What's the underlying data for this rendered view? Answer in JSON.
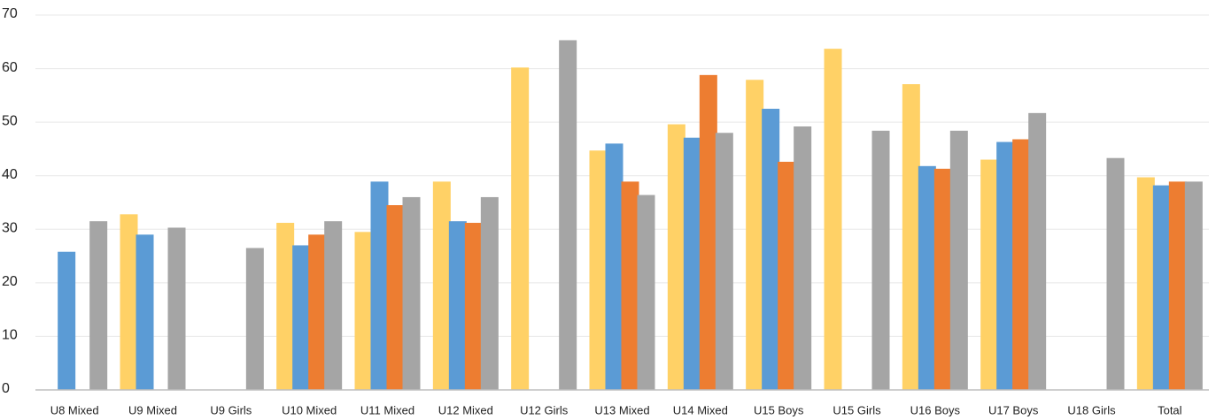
{
  "chart_data": {
    "type": "bar",
    "categories": [
      "U8 Mixed",
      "U9 Mixed",
      "U9 Girls",
      "U10 Mixed",
      "U11 Mixed",
      "U12 Mixed",
      "U12 Girls",
      "U13 Mixed",
      "U14 Mixed",
      "U15 Boys",
      "U15 Girls",
      "U16 Boys",
      "U17 Boys",
      "U18 Girls",
      "Total"
    ],
    "series": [
      {
        "color": "#ffd166",
        "values": [
          null,
          32.8,
          null,
          31.2,
          29.5,
          38.9,
          60.2,
          44.7,
          49.6,
          57.9,
          63.7,
          57.1,
          43.0,
          null,
          39.7
        ]
      },
      {
        "color": "#5b9bd5",
        "values": [
          25.8,
          29.0,
          null,
          27.0,
          38.9,
          31.5,
          null,
          46.0,
          47.1,
          52.5,
          null,
          41.8,
          46.3,
          null,
          38.2
        ]
      },
      {
        "color": "#ed7d31",
        "values": [
          null,
          null,
          null,
          29.0,
          34.5,
          31.2,
          null,
          38.9,
          58.8,
          42.6,
          null,
          41.3,
          46.8,
          null,
          38.9
        ]
      },
      {
        "color": "#a5a5a5",
        "values": [
          31.5,
          30.3,
          26.5,
          31.5,
          36.0,
          36.0,
          65.3,
          36.4,
          48.0,
          49.2,
          48.4,
          48.4,
          51.7,
          43.3,
          38.9
        ]
      }
    ],
    "ylim": [
      0,
      70
    ],
    "yticks": [
      0,
      10,
      20,
      30,
      40,
      50,
      60,
      70
    ],
    "grid": true
  }
}
